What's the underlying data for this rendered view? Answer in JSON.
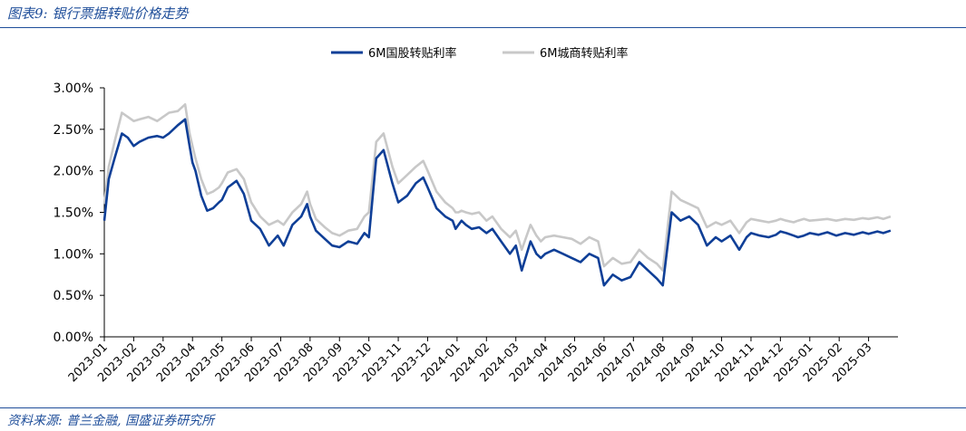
{
  "figure": {
    "title": "图表9:  银行票据转贴价格走势",
    "source": "资料来源:  普兰金融,  国盛证券研究所"
  },
  "chart_data": {
    "type": "line",
    "title": "银行票据转贴价格走势",
    "xlabel": "",
    "ylabel": "",
    "ylim": [
      0,
      3
    ],
    "yticks": [
      "0.00%",
      "0.50%",
      "1.00%",
      "1.50%",
      "2.00%",
      "2.50%",
      "3.00%"
    ],
    "xticks": [
      "2023-01",
      "2023-02",
      "2023-03",
      "2023-04",
      "2023-05",
      "2023-06",
      "2023-07",
      "2023-08",
      "2023-09",
      "2023-10",
      "2023-11",
      "2023-12",
      "2024-01",
      "2024-02",
      "2024-03",
      "2024-04",
      "2024-05",
      "2024-06",
      "2024-07",
      "2024-08",
      "2024-09",
      "2024-10",
      "2024-11",
      "2024-12",
      "2025-01",
      "2025-02",
      "2025-03"
    ],
    "legend_position": "top-center",
    "x": [
      0,
      0.15,
      0.35,
      0.6,
      0.8,
      1.0,
      1.2,
      1.5,
      1.8,
      2.0,
      2.2,
      2.5,
      2.75,
      2.9,
      3.0,
      3.1,
      3.3,
      3.5,
      3.7,
      3.9,
      4.0,
      4.2,
      4.5,
      4.75,
      5.0,
      5.3,
      5.6,
      5.9,
      6.1,
      6.4,
      6.7,
      6.9,
      7.0,
      7.2,
      7.5,
      7.75,
      8.0,
      8.3,
      8.6,
      8.85,
      9.0,
      9.25,
      9.5,
      9.8,
      10.0,
      10.3,
      10.6,
      10.85,
      11.0,
      11.3,
      11.6,
      11.85,
      11.95,
      12.05,
      12.15,
      12.3,
      12.5,
      12.75,
      13.0,
      13.2,
      13.5,
      13.8,
      14.0,
      14.2,
      14.5,
      14.7,
      14.85,
      15.0,
      15.3,
      15.6,
      15.9,
      16.2,
      16.5,
      16.8,
      17.0,
      17.3,
      17.6,
      17.9,
      18.2,
      18.5,
      18.8,
      19.0,
      19.3,
      19.6,
      19.9,
      20.2,
      20.5,
      20.8,
      21.0,
      21.3,
      21.6,
      21.85,
      22.0,
      22.3,
      22.6,
      22.85,
      23.0,
      23.2,
      23.45,
      23.6,
      23.8,
      24.0,
      24.3,
      24.6,
      24.9,
      25.2,
      25.5,
      25.8,
      26.0,
      26.3,
      26.5,
      26.75
    ],
    "series": [
      {
        "name": "6M国股转贴利率",
        "color": "#0f3f97",
        "values": [
          1.4,
          1.9,
          2.15,
          2.45,
          2.4,
          2.3,
          2.35,
          2.4,
          2.42,
          2.4,
          2.45,
          2.55,
          2.62,
          2.3,
          2.1,
          2.0,
          1.7,
          1.52,
          1.55,
          1.62,
          1.65,
          1.8,
          1.88,
          1.72,
          1.4,
          1.3,
          1.1,
          1.22,
          1.1,
          1.35,
          1.45,
          1.6,
          1.45,
          1.28,
          1.18,
          1.1,
          1.08,
          1.15,
          1.12,
          1.25,
          1.2,
          2.15,
          2.25,
          1.85,
          1.62,
          1.7,
          1.85,
          1.92,
          1.8,
          1.55,
          1.45,
          1.4,
          1.3,
          1.35,
          1.4,
          1.35,
          1.3,
          1.32,
          1.25,
          1.3,
          1.15,
          1.0,
          1.1,
          0.8,
          1.15,
          1.0,
          0.95,
          1.0,
          1.05,
          1.0,
          0.95,
          0.9,
          1.0,
          0.95,
          0.62,
          0.75,
          0.68,
          0.72,
          0.9,
          0.8,
          0.7,
          0.62,
          1.5,
          1.4,
          1.45,
          1.35,
          1.1,
          1.2,
          1.15,
          1.22,
          1.05,
          1.2,
          1.25,
          1.22,
          1.2,
          1.23,
          1.27,
          1.25,
          1.22,
          1.2,
          1.22,
          1.25,
          1.23,
          1.26,
          1.22,
          1.25,
          1.23,
          1.26,
          1.24,
          1.27,
          1.25,
          1.28
        ]
      },
      {
        "name": "6M城商转贴利率",
        "color": "#c8c8c8",
        "values": [
          1.6,
          2.05,
          2.35,
          2.7,
          2.65,
          2.6,
          2.62,
          2.65,
          2.6,
          2.65,
          2.7,
          2.72,
          2.8,
          2.45,
          2.3,
          2.15,
          1.9,
          1.72,
          1.75,
          1.8,
          1.85,
          1.98,
          2.02,
          1.9,
          1.62,
          1.45,
          1.35,
          1.4,
          1.35,
          1.5,
          1.6,
          1.75,
          1.6,
          1.42,
          1.32,
          1.25,
          1.22,
          1.28,
          1.3,
          1.45,
          1.5,
          2.35,
          2.45,
          2.05,
          1.85,
          1.95,
          2.05,
          2.12,
          2.0,
          1.75,
          1.62,
          1.55,
          1.5,
          1.5,
          1.52,
          1.5,
          1.48,
          1.5,
          1.4,
          1.45,
          1.3,
          1.2,
          1.28,
          1.05,
          1.35,
          1.22,
          1.15,
          1.2,
          1.22,
          1.2,
          1.18,
          1.12,
          1.2,
          1.15,
          0.85,
          0.95,
          0.88,
          0.9,
          1.05,
          0.95,
          0.88,
          0.8,
          1.75,
          1.65,
          1.6,
          1.55,
          1.32,
          1.38,
          1.35,
          1.4,
          1.25,
          1.38,
          1.42,
          1.4,
          1.38,
          1.4,
          1.42,
          1.4,
          1.38,
          1.4,
          1.42,
          1.4,
          1.41,
          1.42,
          1.4,
          1.42,
          1.41,
          1.43,
          1.42,
          1.44,
          1.42,
          1.45
        ]
      }
    ]
  }
}
